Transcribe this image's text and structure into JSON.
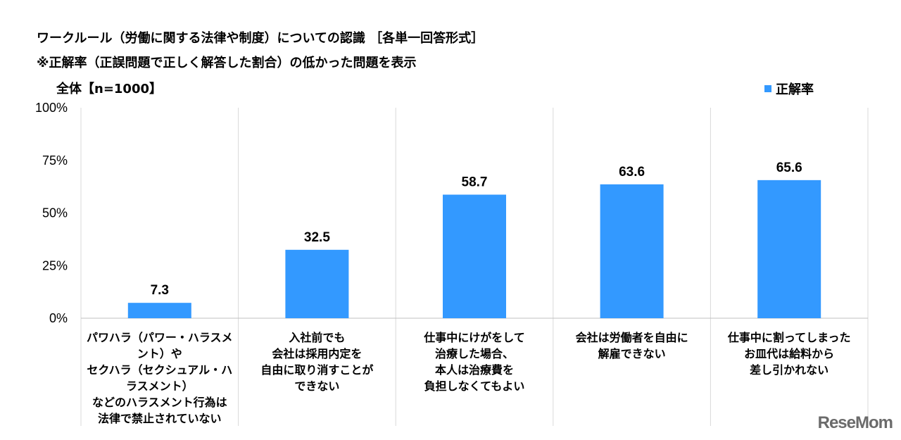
{
  "header": {
    "title_line1": "ワークルール（労働に関する法律や制度）についての認識 ［各単一回答形式］",
    "title_line2": "※正解率（正誤問題で正しく解答した割合）の低かった問題を表示",
    "subtitle": "全体【n=1000】"
  },
  "legend": {
    "label": "正解率",
    "color": "#3399ff"
  },
  "chart_data": {
    "type": "bar",
    "categories": [
      "パワハラ（パワー・ハラスメント）や\nセクハラ（セクシュアル・ハラスメント）\nなどのハラスメント行為は\n法律で禁止されていない",
      "入社前でも\n会社は採用内定を\n自由に取り消すことが\nできない",
      "仕事中にけがをして\n治療した場合、\n本人は治療費を\n負担しなくてもよい",
      "会社は労働者を自由に\n解雇できない",
      "仕事中に割ってしまった\nお皿代は給料から\n差し引かれない"
    ],
    "series": [
      {
        "name": "正解率",
        "values": [
          7.3,
          32.5,
          58.7,
          63.6,
          65.6
        ]
      }
    ],
    "value_labels": [
      "7.3",
      "32.5",
      "58.7",
      "63.6",
      "65.6"
    ],
    "ylim": [
      0,
      100
    ],
    "yticks": [
      0,
      25,
      50,
      75,
      100
    ],
    "ytick_labels": [
      "0%",
      "25%",
      "50%",
      "75%",
      "100%"
    ],
    "grid": "vertical separators",
    "legend_position": "top-right",
    "bar_color": "#3399ff"
  },
  "watermark": "ReseMom"
}
